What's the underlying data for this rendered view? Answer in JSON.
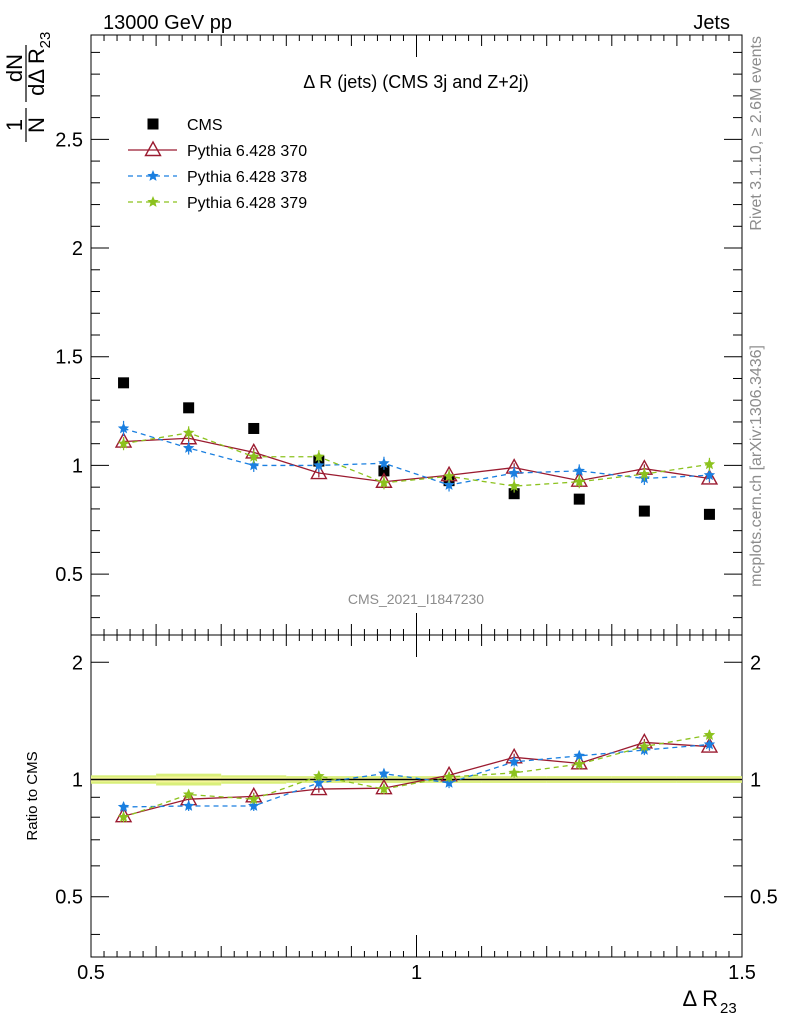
{
  "header": {
    "left": "13000 GeV pp",
    "right": "Jets"
  },
  "side_labels": {
    "rivet": "Rivet 3.1.10, ≥ 2.6M events",
    "mcplots": "mcplots.cern.ch [arXiv:1306.3436]"
  },
  "chart_data": [
    {
      "type": "scatter",
      "title": "Δ R (jets) (CMS 3j and Z+2j)",
      "watermark": "CMS_2021_I1847230",
      "ylabel_num": "dN",
      "ylabel_den": "dΔ R",
      "ylabel_sub": "23",
      "xlim": [
        0.5,
        1.5
      ],
      "ylim": [
        0.22,
        2.98
      ],
      "yticks": [
        0.5,
        1,
        1.5,
        2,
        2.5
      ],
      "ytick_labels": [
        "0.5",
        "1",
        "1.5",
        "2",
        "2.5"
      ],
      "legend_position": "top-left",
      "x": [
        0.55,
        0.65,
        0.75,
        0.85,
        0.95,
        1.05,
        1.15,
        1.25,
        1.35,
        1.45
      ],
      "series": [
        {
          "name": "CMS",
          "color": "#000000",
          "marker": "square",
          "line": "none",
          "values": [
            1.38,
            1.265,
            1.17,
            1.02,
            0.975,
            0.93,
            0.87,
            0.845,
            0.79,
            0.775
          ]
        },
        {
          "name": "Pythia 6.428 370",
          "color": "#9b1b30",
          "marker": "triangle",
          "line": "solid",
          "values": [
            1.11,
            1.125,
            1.06,
            0.965,
            0.925,
            0.955,
            0.99,
            0.93,
            0.985,
            0.94
          ],
          "errors": [
            0.02,
            0.02,
            0.02,
            0.02,
            0.02,
            0.02,
            0.02,
            0.02,
            0.02,
            0.02
          ]
        },
        {
          "name": "Pythia 6.428 378",
          "color": "#1a7fe0",
          "marker": "star",
          "line": "dashed",
          "values": [
            1.17,
            1.08,
            1.0,
            1.0,
            1.01,
            0.91,
            0.965,
            0.975,
            0.94,
            0.955
          ],
          "errors": [
            0.035,
            0.03,
            0.03,
            0.03,
            0.03,
            0.03,
            0.03,
            0.03,
            0.03,
            0.03
          ]
        },
        {
          "name": "Pythia 6.428 379",
          "color": "#8cc21e",
          "marker": "star",
          "line": "dashed",
          "values": [
            1.1,
            1.15,
            1.04,
            1.04,
            0.92,
            0.95,
            0.905,
            0.925,
            0.96,
            1.005
          ],
          "errors": [
            0.03,
            0.03,
            0.03,
            0.03,
            0.03,
            0.03,
            0.03,
            0.03,
            0.03,
            0.03
          ]
        }
      ]
    },
    {
      "type": "scatter",
      "ylabel": "Ratio to CMS",
      "xlabel_main": "Δ R",
      "xlabel_sub": "23",
      "xlim": [
        0.5,
        1.5
      ],
      "ylim": [
        0.35,
        2.35
      ],
      "yticks": [
        0.5,
        1,
        2
      ],
      "ytick_labels": [
        "0.5",
        "1",
        "2"
      ],
      "xticks": [
        0.5,
        1,
        1.5
      ],
      "xtick_labels": [
        "0.5",
        "1",
        "1.5"
      ],
      "x": [
        0.55,
        0.65,
        0.75,
        0.85,
        0.95,
        1.05,
        1.15,
        1.25,
        1.35,
        1.45
      ],
      "band": {
        "color": "#d9ef7a",
        "inner_color": "#f6f79a",
        "lower": [
          0.975,
          0.965,
          0.975,
          0.98,
          0.98,
          0.98,
          0.98,
          0.98,
          0.98,
          0.98
        ],
        "upper": [
          1.025,
          1.035,
          1.025,
          1.02,
          1.02,
          1.02,
          1.02,
          1.02,
          1.02,
          1.02
        ]
      },
      "series": [
        {
          "name": "Pythia 6.428 370",
          "color": "#9b1b30",
          "marker": "triangle",
          "line": "solid",
          "values": [
            0.805,
            0.89,
            0.905,
            0.945,
            0.95,
            1.025,
            1.14,
            1.1,
            1.245,
            1.215
          ],
          "errors": [
            0.015,
            0.015,
            0.02,
            0.02,
            0.02,
            0.02,
            0.025,
            0.025,
            0.025,
            0.03
          ]
        },
        {
          "name": "Pythia 6.428 378",
          "color": "#1a7fe0",
          "marker": "star",
          "line": "dashed",
          "values": [
            0.85,
            0.855,
            0.855,
            0.98,
            1.035,
            0.98,
            1.11,
            1.15,
            1.19,
            1.23
          ],
          "errors": [
            0.025,
            0.025,
            0.025,
            0.03,
            0.03,
            0.03,
            0.03,
            0.035,
            0.035,
            0.04
          ]
        },
        {
          "name": "Pythia 6.428 379",
          "color": "#8cc21e",
          "marker": "star",
          "line": "dashed",
          "values": [
            0.8,
            0.915,
            0.89,
            1.02,
            0.945,
            1.015,
            1.04,
            1.095,
            1.215,
            1.3
          ],
          "errors": [
            0.025,
            0.025,
            0.025,
            0.03,
            0.03,
            0.03,
            0.03,
            0.035,
            0.035,
            0.04
          ]
        }
      ]
    }
  ]
}
